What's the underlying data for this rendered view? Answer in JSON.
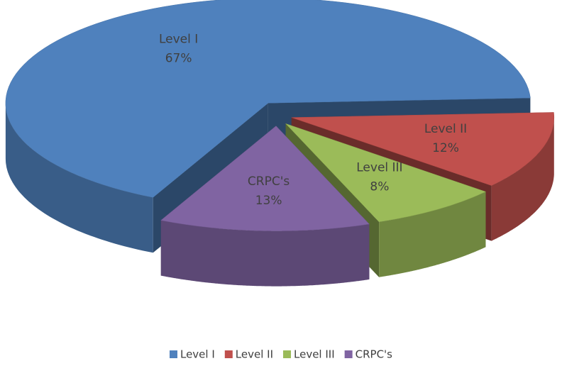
{
  "chart_data": {
    "type": "pie",
    "categories": [
      "Level I",
      "Level II",
      "Level III",
      "CRPC's"
    ],
    "values": [
      67,
      12,
      8,
      13
    ],
    "value_labels": [
      "67%",
      "12%",
      "8%",
      "13%"
    ],
    "colors": [
      "#4f81bd",
      "#c0504d",
      "#9bbb59",
      "#8064a2"
    ],
    "legend": "bottom"
  }
}
